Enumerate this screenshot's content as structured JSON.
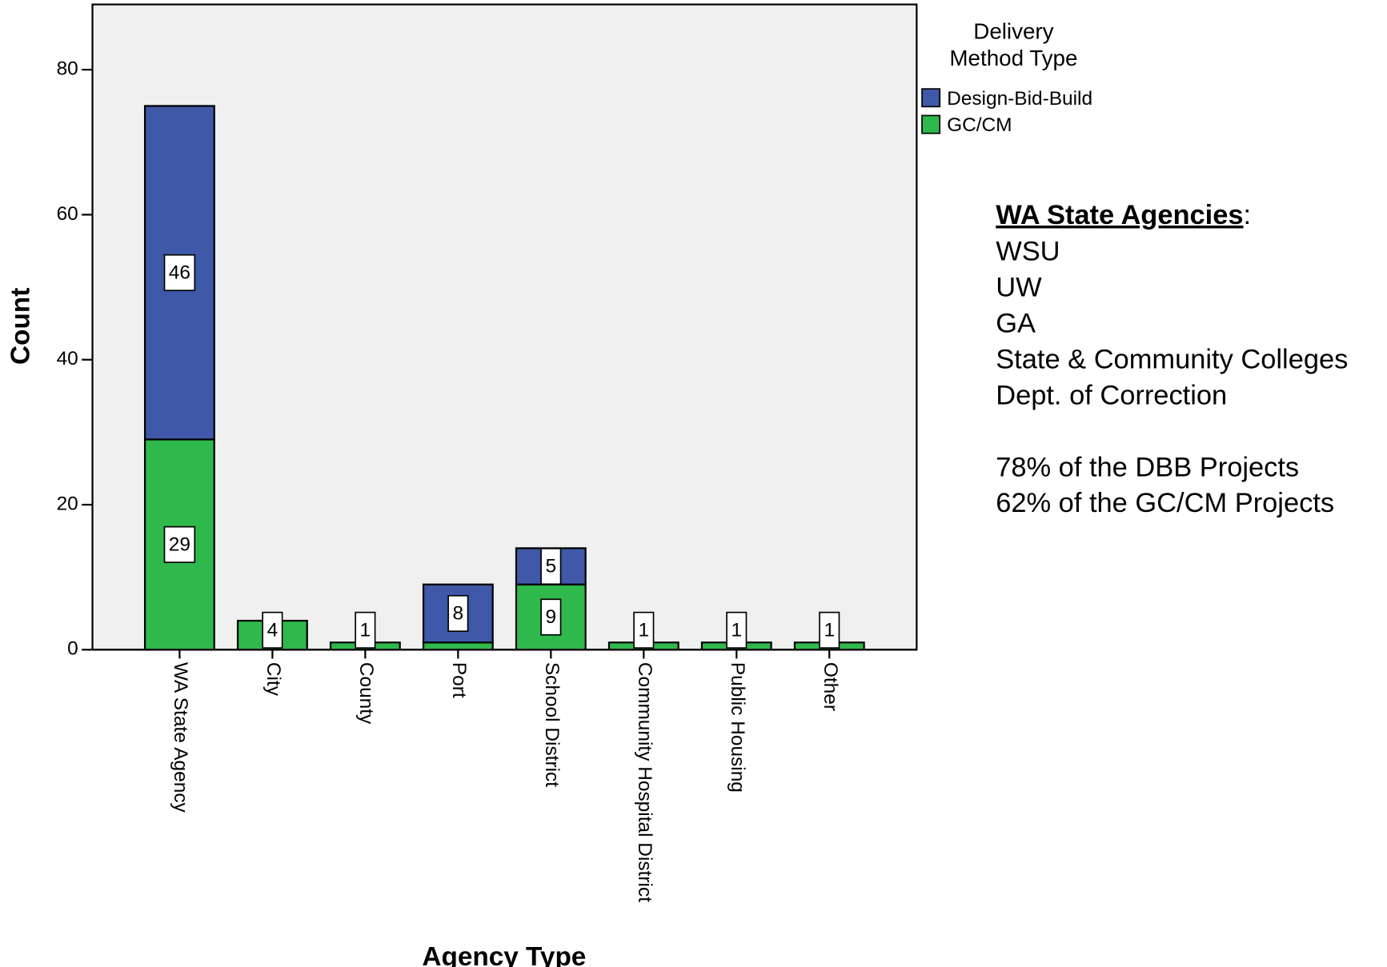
{
  "chart_data": {
    "type": "stacked_bar",
    "x_label": "Agency Type",
    "y_label": "Count",
    "categories": [
      "WA State Agency",
      "City",
      "County",
      "Port",
      "School District",
      "Community Hospital District",
      "Public Housing",
      "Other"
    ],
    "series": [
      {
        "name": "Design-Bid-Build",
        "color": "#3f58a8",
        "values": [
          46,
          0,
          0,
          8,
          5,
          0,
          0,
          0
        ],
        "value_labels": [
          "46",
          null,
          null,
          "8",
          "5",
          null,
          null,
          null
        ]
      },
      {
        "name": "GC/CM",
        "color": "#2fb84b",
        "values": [
          29,
          4,
          1,
          1,
          9,
          1,
          1,
          1
        ],
        "value_labels": [
          "29",
          "4",
          "1",
          null,
          "9",
          "1",
          "1",
          "1"
        ]
      }
    ],
    "legend_title": [
      "Delivery",
      "Method Type"
    ],
    "ylim": [
      0,
      89
    ],
    "yticks": [
      0,
      20,
      40,
      60,
      80
    ]
  },
  "annotation": {
    "heading": "WA State Agencies",
    "heading_suffix": ":",
    "lines": [
      "WSU",
      "UW",
      "GA",
      "State & Community Colleges",
      "Dept. of Correction"
    ],
    "stats": [
      "78% of the DBB Projects",
      "62% of the GC/CM Projects"
    ]
  }
}
